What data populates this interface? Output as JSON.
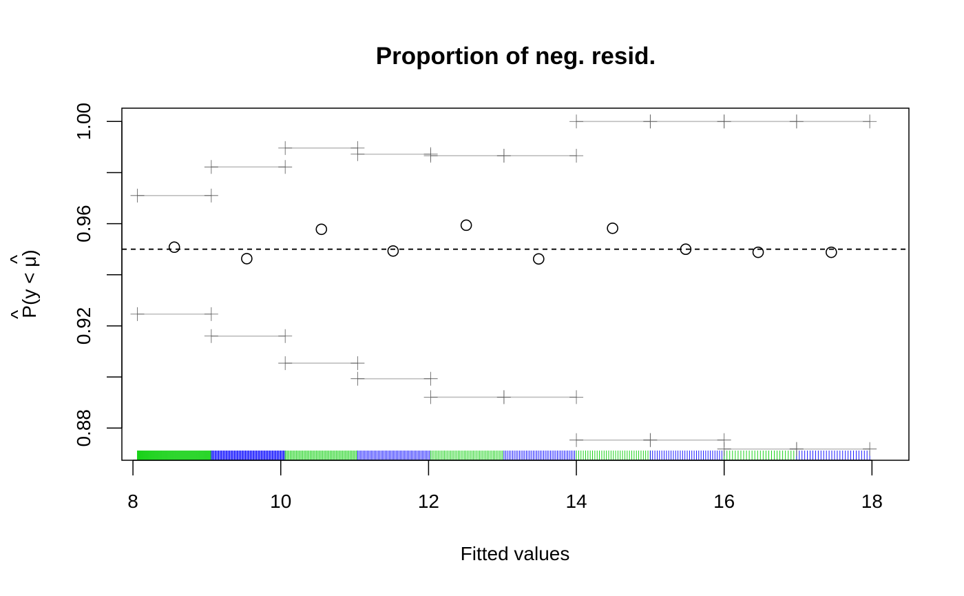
{
  "chart_data": {
    "type": "scatter",
    "title": "Proportion of neg. resid.",
    "xlabel": "Fitted values",
    "ylabel_main": "P",
    "ylabel_hat": "^",
    "ylabel_paren": "(y < ",
    "ylabel_mu": "μ",
    "ylabel_close": ")",
    "xlim": [
      7.85,
      18.5
    ],
    "ylim": [
      0.8674,
      1.0052
    ],
    "x_ticks": [
      8,
      10,
      12,
      14,
      16,
      18
    ],
    "x_tick_labels": [
      "8",
      "10",
      "12",
      "14",
      "16",
      "18"
    ],
    "y_ticks": [
      0.88,
      0.9,
      0.92,
      0.94,
      0.96,
      0.98,
      1.0
    ],
    "y_tick_labels": [
      "0.88",
      "",
      "0.92",
      "",
      "0.96",
      "",
      "1.00"
    ],
    "reference_line": 0.95,
    "points": {
      "x": [
        8.56,
        9.54,
        10.55,
        11.52,
        12.51,
        13.49,
        14.49,
        15.48,
        16.46,
        17.45
      ],
      "y": [
        0.9508,
        0.9463,
        0.9578,
        0.9493,
        0.9594,
        0.9462,
        0.9582,
        0.95,
        0.9488,
        0.9488
      ]
    },
    "bins": [
      {
        "start": 8.06,
        "end": 9.06,
        "upper": 0.971,
        "lower": 0.9246
      },
      {
        "start": 9.06,
        "end": 10.06,
        "upper": 0.9822,
        "lower": 0.916
      },
      {
        "start": 10.06,
        "end": 11.04,
        "upper": 0.9896,
        "lower": 0.9054
      },
      {
        "start": 11.04,
        "end": 12.03,
        "upper": 0.9872,
        "lower": 0.8993
      },
      {
        "start": 12.03,
        "end": 13.02,
        "upper": 0.9866,
        "lower": 0.8921
      },
      {
        "start": 13.02,
        "end": 14.0,
        "upper": 0.9866,
        "lower": 0.8921
      },
      {
        "start": 14.0,
        "end": 15.0,
        "upper": 1.0,
        "lower": 0.8753
      },
      {
        "start": 15.0,
        "end": 16.0,
        "upper": 1.0,
        "lower": 0.8753
      },
      {
        "start": 16.0,
        "end": 16.98,
        "upper": 1.0,
        "lower": 0.8718
      },
      {
        "start": 16.98,
        "end": 17.97,
        "upper": 1.0,
        "lower": 0.8718
      }
    ],
    "rug": {
      "y_top": 0.8712,
      "segments": [
        {
          "start": 8.06,
          "end": 9.06,
          "color": "#00cd00",
          "density": 40
        },
        {
          "start": 9.06,
          "end": 10.06,
          "color": "#0000ff",
          "density": 30
        },
        {
          "start": 10.06,
          "end": 11.04,
          "color": "#00cd00",
          "density": 22
        },
        {
          "start": 11.04,
          "end": 12.03,
          "color": "#0000ff",
          "density": 20
        },
        {
          "start": 12.03,
          "end": 13.02,
          "color": "#00cd00",
          "density": 18
        },
        {
          "start": 13.02,
          "end": 14.0,
          "color": "#0000ff",
          "density": 16
        },
        {
          "start": 14.0,
          "end": 15.0,
          "color": "#00cd00",
          "density": 12
        },
        {
          "start": 15.0,
          "end": 16.0,
          "color": "#0000ff",
          "density": 12
        },
        {
          "start": 16.0,
          "end": 16.98,
          "color": "#00cd00",
          "density": 10
        },
        {
          "start": 16.98,
          "end": 17.97,
          "color": "#0000ff",
          "density": 10
        }
      ]
    },
    "colors": {
      "interval_line": "#bebebe",
      "interval_mark": "#555555",
      "point": "#000000",
      "reference": "#000000"
    }
  }
}
